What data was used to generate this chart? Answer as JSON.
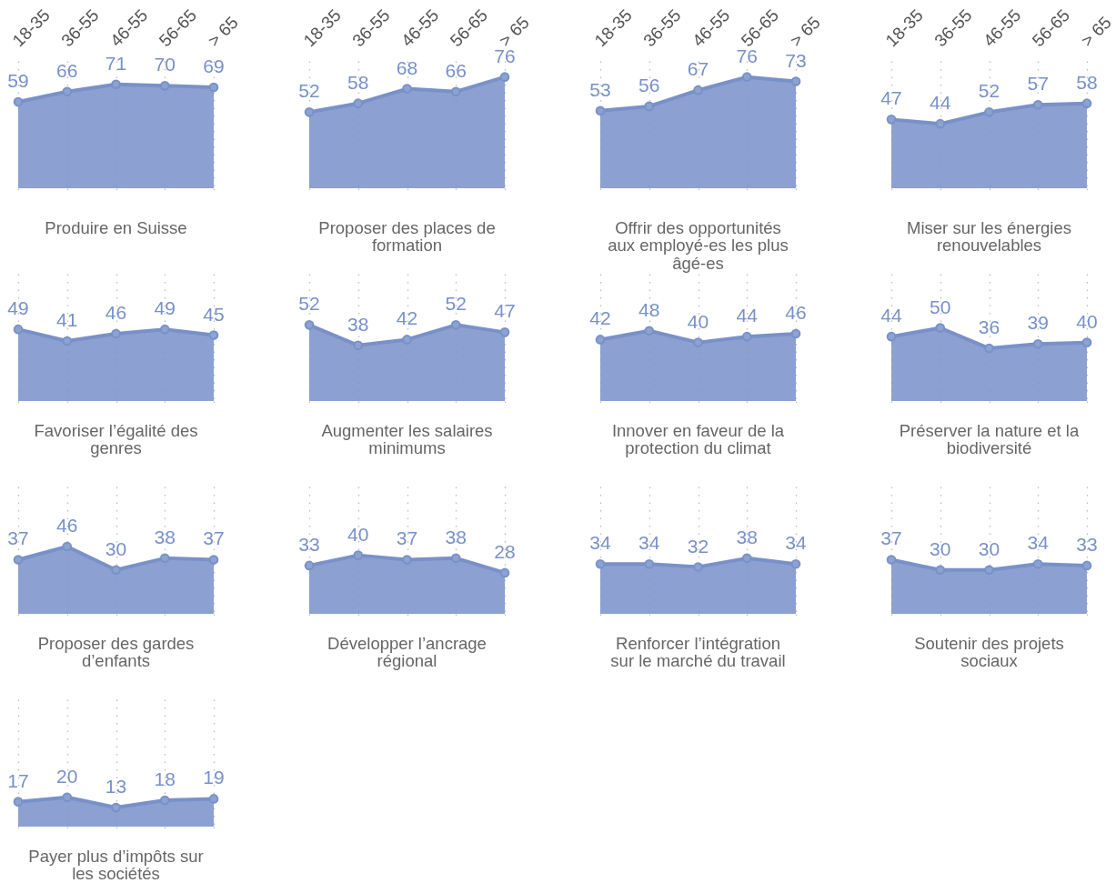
{
  "chart_data": [
    {
      "type": "area",
      "title": "Produire en Suisse",
      "categories": [
        "18-35",
        "36-55",
        "46-55",
        "56-65",
        "> 65"
      ],
      "values": [
        59,
        66,
        71,
        70,
        69
      ],
      "color": "#7891c9",
      "ylim": [
        0,
        87
      ],
      "grid": "x",
      "marker": "circle",
      "data_labels": true,
      "tick_labels": "x"
    },
    {
      "type": "area",
      "title": "Proposer des places de\nformation",
      "categories": [
        "18-35",
        "36-55",
        "46-55",
        "56-65",
        "> 65"
      ],
      "values": [
        52,
        58,
        68,
        66,
        76
      ],
      "color": "#7891c9",
      "ylim": [
        0,
        87
      ],
      "grid": "x",
      "marker": "circle",
      "data_labels": true,
      "tick_labels": "x"
    },
    {
      "type": "area",
      "title": "Offrir des opportunités\naux employé-es les plus\nâgé-es",
      "categories": [
        "18-35",
        "36-55",
        "46-55",
        "56-65",
        "> 65"
      ],
      "values": [
        53,
        56,
        67,
        76,
        73
      ],
      "color": "#7891c9",
      "ylim": [
        0,
        87
      ],
      "grid": "x",
      "marker": "circle",
      "data_labels": true,
      "tick_labels": "x"
    },
    {
      "type": "area",
      "title": "Miser sur les énergies\nrenouvelables",
      "categories": [
        "18-35",
        "36-55",
        "46-55",
        "56-65",
        "> 65"
      ],
      "values": [
        47,
        44,
        52,
        57,
        58
      ],
      "color": "#7891c9",
      "ylim": [
        0,
        87
      ],
      "grid": "x",
      "marker": "circle",
      "data_labels": true,
      "tick_labels": "x"
    },
    {
      "type": "area",
      "title": "Favoriser l’égalité des\ngenres",
      "categories": [
        null,
        null,
        null,
        null,
        null
      ],
      "values": [
        49,
        41,
        46,
        49,
        45
      ],
      "color": "#7891c9",
      "ylim": [
        0,
        87
      ],
      "grid": "x",
      "marker": "circle",
      "data_labels": true,
      "tick_labels": false
    },
    {
      "type": "area",
      "title": "Augmenter les salaires\nminimums",
      "categories": [
        null,
        null,
        null,
        null,
        null
      ],
      "values": [
        52,
        38,
        42,
        52,
        47
      ],
      "color": "#7891c9",
      "ylim": [
        0,
        87
      ],
      "grid": "x",
      "marker": "circle",
      "data_labels": true,
      "tick_labels": false
    },
    {
      "type": "area",
      "title": "Innover en faveur de la\nprotection du climat",
      "categories": [
        null,
        null,
        null,
        null,
        null
      ],
      "values": [
        42,
        48,
        40,
        44,
        46
      ],
      "color": "#7891c9",
      "ylim": [
        0,
        87
      ],
      "grid": "x",
      "marker": "circle",
      "data_labels": true,
      "tick_labels": false
    },
    {
      "type": "area",
      "title": "Préserver la nature et la\nbiodiversité",
      "categories": [
        null,
        null,
        null,
        null,
        null
      ],
      "values": [
        44,
        50,
        36,
        39,
        40
      ],
      "color": "#7891c9",
      "ylim": [
        0,
        87
      ],
      "grid": "x",
      "marker": "circle",
      "data_labels": true,
      "tick_labels": false
    },
    {
      "type": "area",
      "title": "Proposer des gardes\nd’enfants",
      "categories": [
        null,
        null,
        null,
        null,
        null
      ],
      "values": [
        37,
        46,
        30,
        38,
        37
      ],
      "color": "#7891c9",
      "ylim": [
        0,
        87
      ],
      "grid": "x",
      "marker": "circle",
      "data_labels": true,
      "tick_labels": false
    },
    {
      "type": "area",
      "title": "Développer l’ancrage\nrégional",
      "categories": [
        null,
        null,
        null,
        null,
        null
      ],
      "values": [
        33,
        40,
        37,
        38,
        28
      ],
      "color": "#7891c9",
      "ylim": [
        0,
        87
      ],
      "grid": "x",
      "marker": "circle",
      "data_labels": true,
      "tick_labels": false
    },
    {
      "type": "area",
      "title": "Renforcer l’intégration\nsur le marché du travail",
      "categories": [
        null,
        null,
        null,
        null,
        null
      ],
      "values": [
        34,
        34,
        32,
        38,
        34
      ],
      "color": "#7891c9",
      "ylim": [
        0,
        87
      ],
      "grid": "x",
      "marker": "circle",
      "data_labels": true,
      "tick_labels": false
    },
    {
      "type": "area",
      "title": "Soutenir des projets\nsociaux",
      "categories": [
        null,
        null,
        null,
        null,
        null
      ],
      "values": [
        37,
        30,
        30,
        34,
        33
      ],
      "color": "#7891c9",
      "ylim": [
        0,
        87
      ],
      "grid": "x",
      "marker": "circle",
      "data_labels": true,
      "tick_labels": false
    },
    {
      "type": "area",
      "title": "Payer plus d’impôts sur\nles sociétés",
      "categories": [
        null,
        null,
        null,
        null,
        null
      ],
      "values": [
        17,
        20,
        13,
        18,
        19
      ],
      "color": "#7891c9",
      "ylim": [
        0,
        87
      ],
      "grid": "x",
      "marker": "circle",
      "data_labels": true,
      "tick_labels": false
    }
  ]
}
